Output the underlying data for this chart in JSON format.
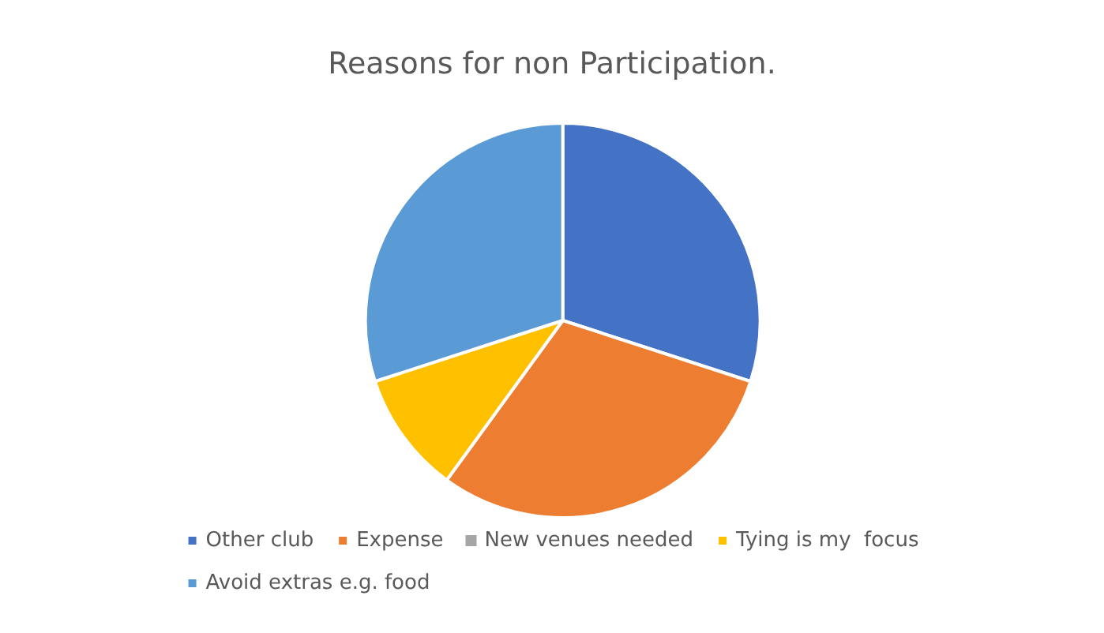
{
  "chart_data": {
    "type": "pie",
    "title": "Reasons for non Participation.",
    "categories": [
      "Other club",
      "Expense",
      "New venues needed",
      "Tying is my  focus",
      "Avoid extras e.g. food"
    ],
    "values": [
      30,
      30,
      0,
      10,
      30
    ],
    "colors": [
      "#4472c4",
      "#ed7d31",
      "#a5a5a5",
      "#ffc000",
      "#5b9bd5"
    ],
    "legend": "bottom"
  }
}
